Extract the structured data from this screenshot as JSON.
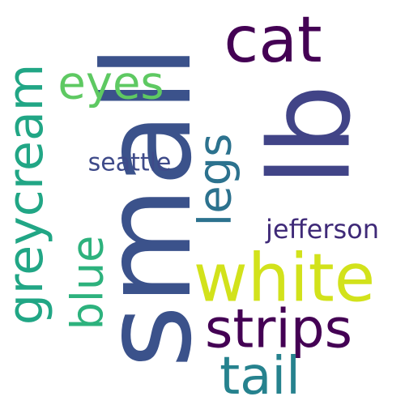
{
  "words": [
    {
      "id": "small",
      "text": "small",
      "color": "#3b528b"
    },
    {
      "id": "lb",
      "text": "lb",
      "color": "#414487"
    },
    {
      "id": "greycream",
      "text": "greycream",
      "color": "#21a685"
    },
    {
      "id": "white",
      "text": "white",
      "color": "#d2e21b"
    },
    {
      "id": "cat",
      "text": "cat",
      "color": "#440154"
    },
    {
      "id": "eyes",
      "text": "eyes",
      "color": "#5ec962"
    },
    {
      "id": "legs",
      "text": "legs",
      "color": "#2c728e"
    },
    {
      "id": "strips",
      "text": "strips",
      "color": "#440154"
    },
    {
      "id": "tail",
      "text": "tail",
      "color": "#26828e"
    },
    {
      "id": "blue",
      "text": "blue",
      "color": "#2db27d"
    },
    {
      "id": "seattle",
      "text": "seattle",
      "color": "#3e4a89"
    },
    {
      "id": "jefferson",
      "text": "jefferson",
      "color": "#3f2a78"
    }
  ]
}
